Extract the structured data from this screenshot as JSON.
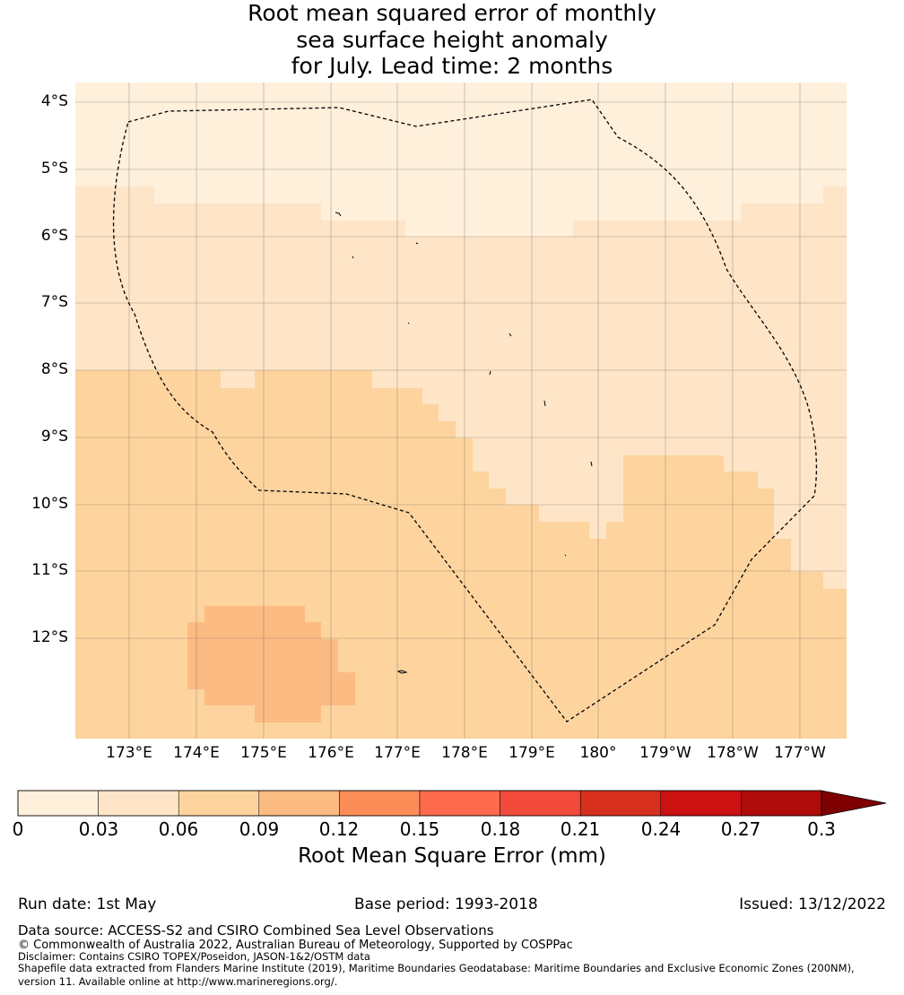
{
  "title": {
    "line1": "Root mean squared error of monthly",
    "line2": "sea surface height anomaly",
    "line3": "for July. Lead time: 2 months"
  },
  "lat_ticks": [
    "4°S",
    "5°S",
    "6°S",
    "7°S",
    "8°S",
    "9°S",
    "10°S",
    "11°S",
    "12°S"
  ],
  "lon_ticks": [
    "173°E",
    "174°E",
    "175°E",
    "176°E",
    "177°E",
    "178°E",
    "179°E",
    "180°",
    "179°W",
    "178°W",
    "177°W"
  ],
  "colorbar": {
    "ticks": [
      "0",
      "0.03",
      "0.06",
      "0.09",
      "0.12",
      "0.15",
      "0.18",
      "0.21",
      "0.24",
      "0.27",
      "0.3"
    ],
    "colors": [
      "#fff0dc",
      "#fee5c7",
      "#fdd49e",
      "#fdbb84",
      "#fc8d59",
      "#fd6b4c",
      "#f24a3b",
      "#d7301f",
      "#cb1111",
      "#b00b0b"
    ],
    "extend_color": "#7f0000",
    "label": "Root Mean Square Error (mm)"
  },
  "info": {
    "run_date": "Run date: 1st May",
    "base_period": "Base period: 1993-2018",
    "issued": "Issued: 13/12/2022"
  },
  "footer": {
    "data_source": "Data source: ACCESS-S2 and CSIRO Combined Sea Level Observations",
    "copyright": "© Commonwealth of Australia 2022, Australian Bureau of Meteorology, Supported by COSPPac",
    "disclaimer": "Disclaimer: Contains CSIRO TOPEX/Poseidon, JASON-1&2/OSTM data",
    "shapefile_1": "Shapefile data extracted from Flanders Marine Institute (2019), Maritime Boundaries Geodatabase: Maritime Boundaries and Exclusive Economic Zones (200NM),",
    "shapefile_2": "version 11. Available online at http://www.marineregions.org/."
  },
  "map_data": {
    "lon_range": [
      172.2,
      183.6
    ],
    "lat_range": [
      -13.9,
      -3.75
    ],
    "field_levels": [
      "0-0.03",
      "0.03-0.06",
      "0.06-0.09",
      "0.09-0.12"
    ],
    "field_colors": [
      "#fff0dc",
      "#fee5c7",
      "#fdd49e",
      "#fdbb84"
    ]
  }
}
